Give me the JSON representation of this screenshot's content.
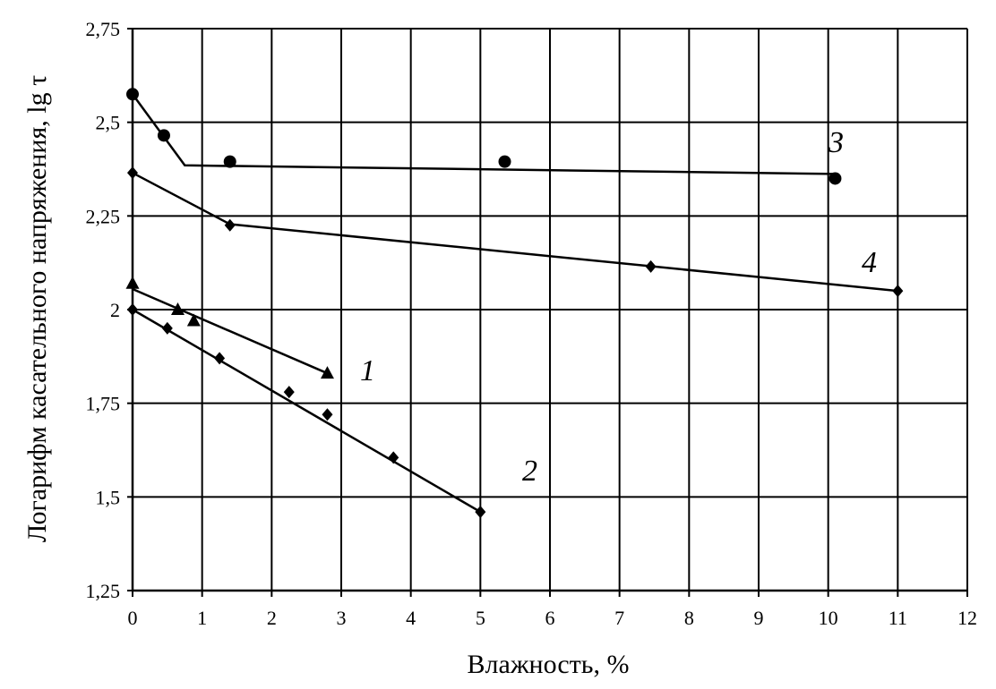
{
  "chart_data": {
    "type": "scatter",
    "xlabel": "Влажность, %",
    "ylabel": "Логарифм касательного напряжения, lg τ",
    "xlim": [
      0,
      12
    ],
    "ylim": [
      1.25,
      2.75
    ],
    "x_ticks": [
      0,
      1,
      2,
      3,
      4,
      5,
      6,
      7,
      8,
      9,
      10,
      11,
      12
    ],
    "y_ticks": [
      1.25,
      1.5,
      1.75,
      2,
      2.25,
      2.5,
      2.75
    ],
    "y_tick_labels": [
      "1,25",
      "1,5",
      "1,75",
      "2",
      "2,25",
      "2,5",
      "2,75"
    ],
    "grid": true,
    "series": [
      {
        "name": "1",
        "marker": "triangle",
        "points": [
          [
            0,
            2.07
          ],
          [
            0.65,
            2.0
          ],
          [
            0.88,
            1.97
          ],
          [
            2.8,
            1.83
          ]
        ],
        "line": [
          [
            0,
            2.055
          ],
          [
            2.8,
            1.83
          ]
        ]
      },
      {
        "name": "2",
        "marker": "diamond",
        "points": [
          [
            0,
            2.0
          ],
          [
            0.5,
            1.95
          ],
          [
            1.25,
            1.87
          ],
          [
            2.25,
            1.78
          ],
          [
            2.8,
            1.72
          ],
          [
            3.75,
            1.605
          ],
          [
            5.0,
            1.46
          ]
        ],
        "line": [
          [
            0,
            2.0
          ],
          [
            5.0,
            1.46
          ]
        ]
      },
      {
        "name": "3",
        "marker": "circle",
        "points": [
          [
            0,
            2.575
          ],
          [
            0.45,
            2.465
          ],
          [
            1.4,
            2.395
          ],
          [
            5.35,
            2.395
          ],
          [
            10.1,
            2.35
          ]
        ],
        "line": [
          [
            0,
            2.575
          ],
          [
            0.75,
            2.385
          ],
          [
            10.1,
            2.362
          ]
        ]
      },
      {
        "name": "4",
        "marker": "diamond",
        "points": [
          [
            0,
            2.365
          ],
          [
            1.4,
            2.225
          ],
          [
            7.45,
            2.115
          ],
          [
            11.0,
            2.05
          ]
        ],
        "line": [
          [
            0,
            2.365
          ],
          [
            1.4,
            2.228
          ],
          [
            11.0,
            2.05
          ]
        ]
      }
    ]
  }
}
